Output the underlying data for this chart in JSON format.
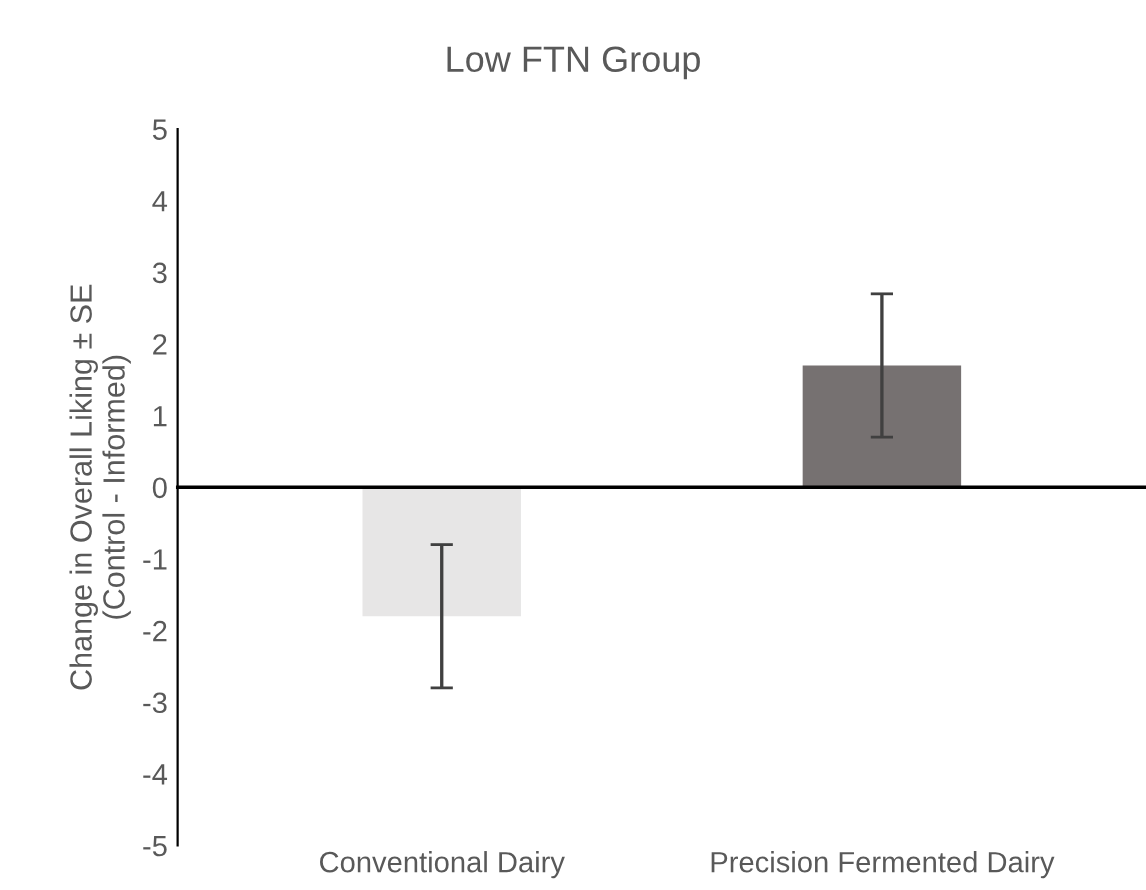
{
  "chart_data": {
    "type": "bar",
    "title": "Low FTN Group",
    "ylabel": "Change in Overall Liking ± SE\n(Control - Informed)",
    "categories": [
      "Conventional Dairy",
      "Precision Fermented Dairy"
    ],
    "values": [
      -1.8,
      1.7
    ],
    "colors": [
      "#e7e6e6",
      "#767171"
    ],
    "errors": [
      1.0,
      1.0
    ],
    "ylim": [
      -5,
      5
    ],
    "yticks": [
      -5,
      -4,
      -3,
      -2,
      -1,
      0,
      1,
      2,
      3,
      4,
      5
    ]
  }
}
